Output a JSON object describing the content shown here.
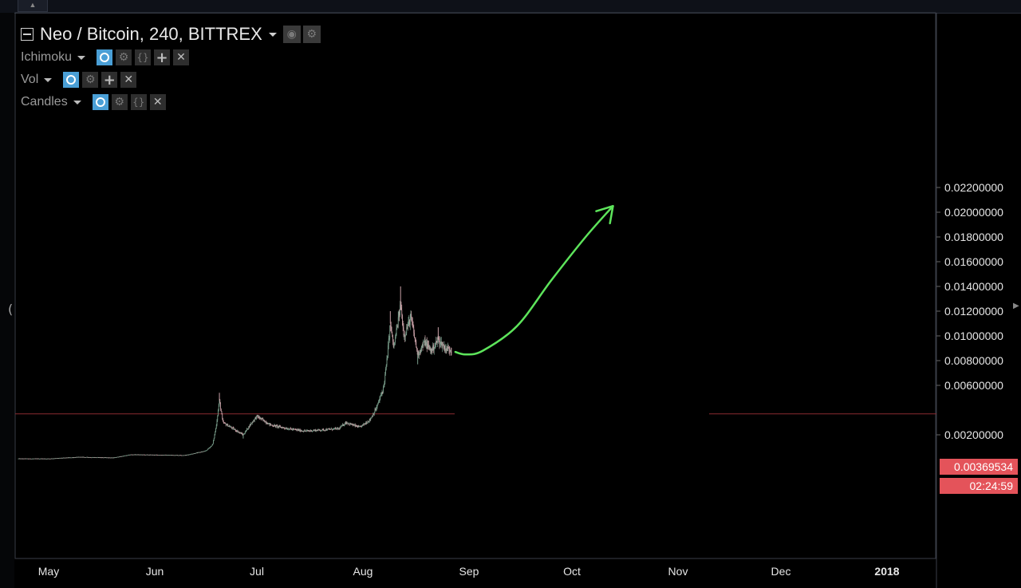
{
  "chart_data": {
    "type": "candlestick",
    "title": "Neo / Bitcoin, 240, BITTREX",
    "symbol": "Neo / Bitcoin",
    "interval": "240",
    "exchange": "BITTREX",
    "xlabels": [
      "May",
      "Jun",
      "Jul",
      "Aug",
      "Sep",
      "Oct",
      "Nov",
      "Dec",
      "2018"
    ],
    "ylabels": [
      "0.02200000",
      "0.02000000",
      "0.01800000",
      "0.01600000",
      "0.01400000",
      "0.01200000",
      "0.01000000",
      "0.00800000",
      "0.00600000",
      "0.00200000"
    ],
    "ylim": [
      0,
      0.022
    ],
    "price_line": 0.00369534,
    "price_label": "0.00369534",
    "countdown": "02:24:59",
    "price_path": [
      [
        "2017-05-01",
        7e-05
      ],
      [
        "2017-05-10",
        0.0002
      ],
      [
        "2017-05-20",
        0.00015
      ],
      [
        "2017-05-25",
        0.0004
      ],
      [
        "2017-06-10",
        0.00035
      ],
      [
        "2017-06-16",
        0.0007
      ],
      [
        "2017-06-18",
        0.0012
      ],
      [
        "2017-06-19",
        0.0026
      ],
      [
        "2017-06-20",
        0.0048
      ],
      [
        "2017-06-21",
        0.003
      ],
      [
        "2017-06-24",
        0.0025
      ],
      [
        "2017-06-27",
        0.002
      ],
      [
        "2017-06-29",
        0.0028
      ],
      [
        "2017-07-01",
        0.0035
      ],
      [
        "2017-07-05",
        0.0028
      ],
      [
        "2017-07-10",
        0.0025
      ],
      [
        "2017-07-15",
        0.0023
      ],
      [
        "2017-07-20",
        0.0024
      ],
      [
        "2017-07-25",
        0.0025
      ],
      [
        "2017-07-27",
        0.003
      ],
      [
        "2017-07-31",
        0.0026
      ],
      [
        "2017-08-03",
        0.0032
      ],
      [
        "2017-08-05",
        0.0042
      ],
      [
        "2017-08-07",
        0.0058
      ],
      [
        "2017-08-08",
        0.008
      ],
      [
        "2017-08-09",
        0.011
      ],
      [
        "2017-08-10",
        0.009
      ],
      [
        "2017-08-12",
        0.0125
      ],
      [
        "2017-08-13",
        0.01
      ],
      [
        "2017-08-15",
        0.0115
      ],
      [
        "2017-08-17",
        0.0085
      ],
      [
        "2017-08-19",
        0.0095
      ],
      [
        "2017-08-21",
        0.0088
      ],
      [
        "2017-08-23",
        0.0097
      ],
      [
        "2017-08-25",
        0.009
      ],
      [
        "2017-08-27",
        0.0089
      ]
    ],
    "wick_highs": [
      [
        "2017-06-20",
        0.0054
      ],
      [
        "2017-08-09",
        0.012
      ],
      [
        "2017-08-12",
        0.014
      ],
      [
        "2017-08-23",
        0.0107
      ]
    ],
    "wick_lows": [
      [
        "2017-08-17",
        0.0077
      ],
      [
        "2017-06-27",
        0.0017
      ]
    ],
    "annotation_arrow": [
      [
        "2017-08-28",
        0.0087
      ],
      [
        "2017-08-31",
        0.0085
      ],
      [
        "2017-09-05",
        0.0088
      ],
      [
        "2017-09-15",
        0.0108
      ],
      [
        "2017-09-25",
        0.0145
      ],
      [
        "2017-10-05",
        0.018
      ],
      [
        "2017-10-13",
        0.0205
      ]
    ],
    "colors": {
      "background": "#000000",
      "candle_up": "#7a9e8c",
      "candle_down": "#c8a0a6",
      "price_line": "#8a2a30",
      "price_tag": "#e4535a",
      "arrow": "#5de45b",
      "axis_text": "#e6e6e6",
      "border": "#3a3e48"
    },
    "grid": false,
    "axis_position": "right"
  },
  "legend": {
    "indicators": [
      {
        "name": "Ichimoku",
        "buttons": [
          "eye-icon",
          "gear-icon",
          "braces-icon",
          "plus-icon",
          "close-icon"
        ]
      },
      {
        "name": "Vol",
        "buttons": [
          "eye-icon",
          "gear-icon",
          "plus-icon",
          "close-icon"
        ]
      },
      {
        "name": "Candles",
        "buttons": [
          "eye-icon",
          "gear-icon",
          "braces-icon",
          "close-icon"
        ]
      }
    ]
  }
}
